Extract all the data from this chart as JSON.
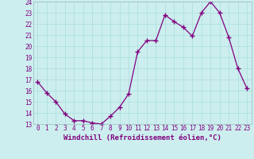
{
  "x": [
    0,
    1,
    2,
    3,
    4,
    5,
    6,
    7,
    8,
    9,
    10,
    11,
    12,
    13,
    14,
    15,
    16,
    17,
    18,
    19,
    20,
    21,
    22,
    23
  ],
  "y": [
    16.8,
    15.8,
    15.0,
    13.9,
    13.3,
    13.3,
    13.1,
    13.0,
    13.7,
    14.5,
    15.7,
    19.5,
    20.5,
    20.5,
    22.8,
    22.2,
    21.7,
    20.9,
    23.0,
    24.0,
    23.0,
    20.8,
    18.0,
    16.2
  ],
  "line_color": "#800080",
  "marker": "+",
  "marker_size": 4,
  "linewidth": 0.9,
  "xlabel": "Windchill (Refroidissement éolien,°C)",
  "xlim": [
    -0.5,
    23.5
  ],
  "ylim": [
    13,
    24
  ],
  "yticks": [
    13,
    14,
    15,
    16,
    17,
    18,
    19,
    20,
    21,
    22,
    23,
    24
  ],
  "xticks": [
    0,
    1,
    2,
    3,
    4,
    5,
    6,
    7,
    8,
    9,
    10,
    11,
    12,
    13,
    14,
    15,
    16,
    17,
    18,
    19,
    20,
    21,
    22,
    23
  ],
  "bg_color": "#cceeee",
  "grid_color": "#aadddd",
  "tick_label_color": "#800080",
  "xlabel_color": "#800080",
  "xlabel_fontsize": 6.5,
  "tick_fontsize": 5.5
}
